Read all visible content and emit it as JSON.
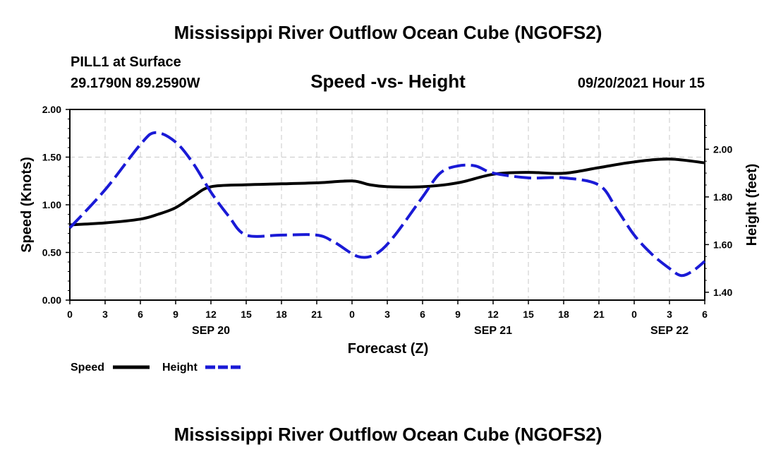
{
  "header": {
    "title": "Mississippi River Outflow Ocean Cube (NGOFS2)",
    "station": "PILL1 at Surface",
    "coords": "29.1790N  89.2590W",
    "subtitle": "Speed -vs- Height",
    "datetime": "09/20/2021 Hour 15"
  },
  "footer": {
    "title": "Mississippi River Outflow Ocean Cube (NGOFS2)"
  },
  "legend": {
    "speed_label": "Speed",
    "height_label": "Height"
  },
  "colors": {
    "speed": "#000000",
    "height": "#1a1ad6",
    "grid": "#c8c8c8"
  },
  "chart_data": {
    "type": "line",
    "title": "Speed -vs- Height",
    "xlabel": "Forecast (Z)",
    "ylabel_left": "Speed (Knots)",
    "ylabel_right": "Height (feet)",
    "x_range": [
      0,
      54
    ],
    "x_tick_values": [
      0,
      3,
      6,
      9,
      12,
      15,
      18,
      21,
      24,
      27,
      30,
      33,
      36,
      39,
      42,
      45,
      48,
      51,
      54
    ],
    "x_tick_labels": [
      "0",
      "3",
      "6",
      "9",
      "12",
      "15",
      "18",
      "21",
      "0",
      "3",
      "6",
      "9",
      "12",
      "15",
      "18",
      "21",
      "0",
      "3",
      "6"
    ],
    "date_labels": [
      {
        "x": 12,
        "label": "SEP 20"
      },
      {
        "x": 36,
        "label": "SEP 21"
      },
      {
        "x": 51,
        "label": "SEP 22"
      }
    ],
    "ylim_left": [
      0,
      2
    ],
    "y_left_ticks": [
      0,
      0.5,
      1,
      1.5,
      2
    ],
    "y_left_tick_labels": [
      "0.00",
      "0.50",
      "1.00",
      "1.50",
      "2.00"
    ],
    "ylim_right": [
      1.367,
      2.167
    ],
    "y_right_ticks": [
      1.4,
      1.6,
      1.8,
      2.0
    ],
    "y_right_tick_labels": [
      "1.40",
      "1.60",
      "1.80",
      "2.00"
    ],
    "series": [
      {
        "name": "Speed",
        "axis": "left",
        "style": "solid",
        "x": [
          0,
          3,
          6,
          7.5,
          9,
          10.5,
          12,
          15,
          18,
          21,
          24,
          25.5,
          27,
          30,
          33,
          36,
          39,
          42,
          45,
          48,
          51,
          54
        ],
        "values": [
          0.79,
          0.81,
          0.85,
          0.9,
          0.97,
          1.09,
          1.19,
          1.21,
          1.22,
          1.23,
          1.25,
          1.21,
          1.19,
          1.19,
          1.23,
          1.32,
          1.34,
          1.33,
          1.39,
          1.45,
          1.48,
          1.44
        ]
      },
      {
        "name": "Height",
        "axis": "right",
        "style": "dashed",
        "x": [
          0,
          3,
          6,
          7.3,
          9,
          10.5,
          12,
          13.5,
          15,
          18,
          21,
          22.5,
          24.5,
          26,
          27.5,
          30,
          31.5,
          33,
          34.5,
          36,
          39,
          42,
          45,
          46.5,
          48,
          49.5,
          51,
          52,
          53,
          54
        ],
        "values": [
          1.67,
          1.83,
          2.02,
          2.07,
          2.03,
          1.94,
          1.82,
          1.72,
          1.64,
          1.64,
          1.64,
          1.61,
          1.55,
          1.56,
          1.63,
          1.8,
          1.9,
          1.93,
          1.93,
          1.9,
          1.88,
          1.88,
          1.85,
          1.75,
          1.64,
          1.56,
          1.5,
          1.47,
          1.49,
          1.53
        ]
      }
    ]
  }
}
